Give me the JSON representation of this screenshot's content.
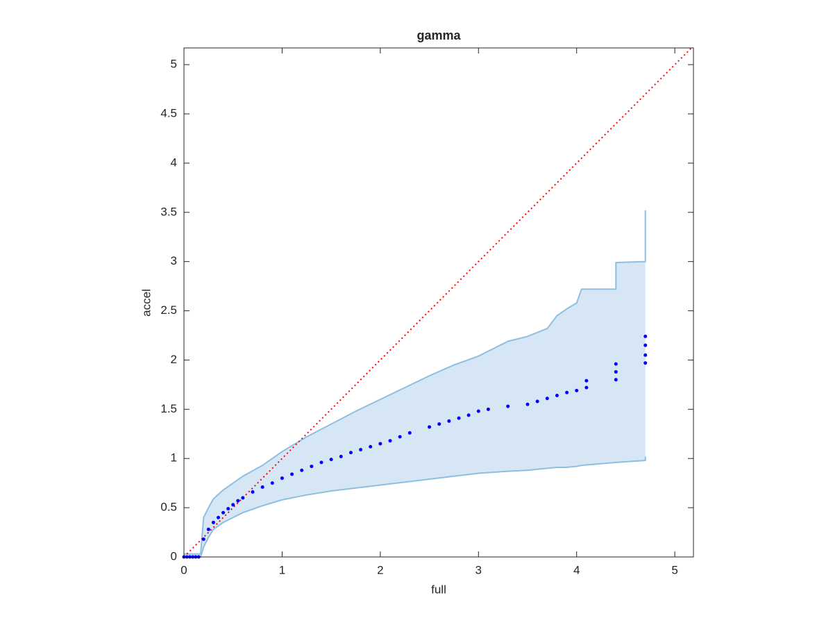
{
  "chart_data": {
    "type": "scatter",
    "title": "gamma",
    "x_label": "full",
    "y_label": "accel",
    "xlim": [
      0,
      5.19
    ],
    "ylim": [
      0,
      5.17
    ],
    "xticks": [
      0,
      1,
      2,
      3,
      4,
      5
    ],
    "yticks": [
      0,
      0.5,
      1,
      1.5,
      2,
      2.5,
      3,
      3.5,
      4,
      4.5,
      5
    ],
    "scatter": {
      "color": "#0000ff",
      "x": [
        0,
        0.03,
        0.06,
        0.09,
        0.12,
        0.15,
        0.2,
        0.25,
        0.3,
        0.35,
        0.4,
        0.45,
        0.5,
        0.55,
        0.6,
        0.7,
        0.8,
        0.9,
        1.0,
        1.1,
        1.2,
        1.3,
        1.4,
        1.5,
        1.6,
        1.7,
        1.8,
        1.9,
        2.0,
        2.1,
        2.2,
        2.3,
        2.5,
        2.6,
        2.7,
        2.8,
        2.9,
        3.0,
        3.1,
        3.3,
        3.5,
        3.6,
        3.7,
        3.8,
        3.9,
        4.0,
        4.1,
        4.1,
        4.4,
        4.4,
        4.4,
        4.7,
        4.7,
        4.7,
        4.7
      ],
      "y": [
        0,
        0,
        0,
        0,
        0,
        0,
        0.18,
        0.28,
        0.35,
        0.4,
        0.45,
        0.49,
        0.53,
        0.57,
        0.6,
        0.66,
        0.71,
        0.75,
        0.8,
        0.84,
        0.88,
        0.92,
        0.96,
        0.99,
        1.02,
        1.06,
        1.09,
        1.12,
        1.15,
        1.18,
        1.22,
        1.26,
        1.32,
        1.35,
        1.38,
        1.41,
        1.44,
        1.48,
        1.5,
        1.53,
        1.55,
        1.58,
        1.61,
        1.64,
        1.67,
        1.69,
        1.72,
        1.79,
        1.8,
        1.88,
        1.96,
        1.97,
        2.05,
        2.15,
        2.24
      ]
    },
    "band": {
      "color": "#d6e6f4",
      "edge_color": "#8dbfe0",
      "x": [
        0,
        0.17,
        0.2,
        0.25,
        0.3,
        0.4,
        0.5,
        0.6,
        0.8,
        1.0,
        1.25,
        1.5,
        1.75,
        2.0,
        2.25,
        2.5,
        2.75,
        3.0,
        3.3,
        3.5,
        3.7,
        3.8,
        3.9,
        4.0,
        4.05,
        4.4,
        4.4,
        4.7,
        4.7
      ],
      "upper": [
        0.03,
        0.03,
        0.4,
        0.5,
        0.59,
        0.68,
        0.75,
        0.82,
        0.93,
        1.07,
        1.22,
        1.35,
        1.48,
        1.6,
        1.72,
        1.84,
        1.95,
        2.04,
        2.19,
        2.24,
        2.32,
        2.45,
        2.52,
        2.58,
        2.72,
        2.72,
        2.99,
        3.0,
        3.52
      ],
      "lower": [
        0,
        0,
        0.1,
        0.2,
        0.28,
        0.35,
        0.4,
        0.45,
        0.52,
        0.58,
        0.63,
        0.67,
        0.7,
        0.73,
        0.76,
        0.79,
        0.82,
        0.85,
        0.87,
        0.88,
        0.9,
        0.91,
        0.91,
        0.92,
        0.93,
        0.96,
        0.96,
        0.98,
        1.02
      ]
    },
    "reference_line": {
      "color": "#ff0000",
      "x": [
        0,
        5.19
      ],
      "y": [
        0,
        5.19
      ]
    }
  }
}
